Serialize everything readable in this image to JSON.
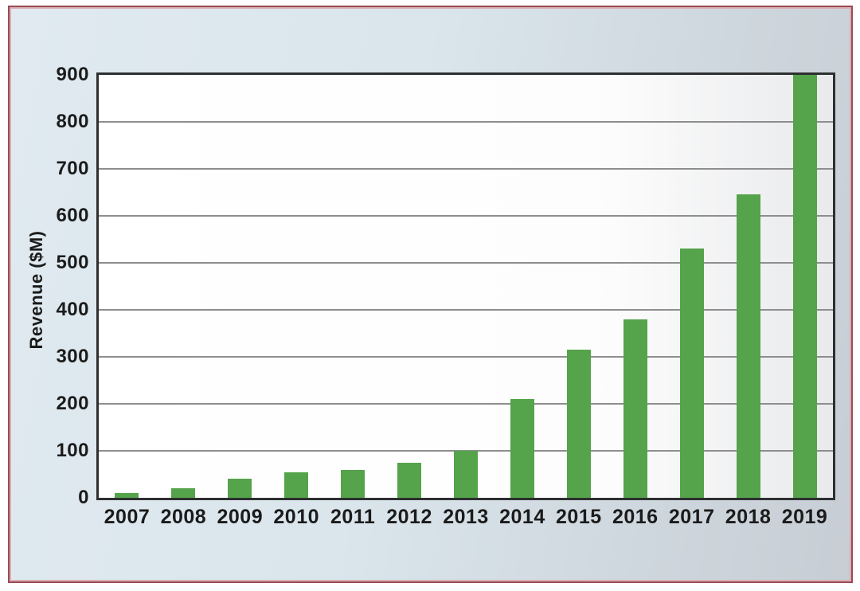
{
  "panel": {
    "border_color": "#9a4b54",
    "border_inner_color": "#d9aeb4",
    "background_left": "#e0eaf0",
    "background_right": "#c7cdd4"
  },
  "chart_data": {
    "type": "bar",
    "title": "",
    "xlabel": "",
    "ylabel": "Revenue ($M)",
    "categories": [
      "2007",
      "2008",
      "2009",
      "2010",
      "2011",
      "2012",
      "2013",
      "2014",
      "2015",
      "2016",
      "2017",
      "2018",
      "2019"
    ],
    "values": [
      10,
      20,
      40,
      55,
      60,
      75,
      100,
      210,
      315,
      380,
      530,
      645,
      900
    ],
    "ylim": [
      0,
      900
    ],
    "yticks": [
      0,
      100,
      200,
      300,
      400,
      500,
      600,
      700,
      800,
      900
    ],
    "grid": "horizontal-gridlines",
    "legend": "none",
    "bar_color": "#55a34b",
    "plot_border_color": "#2d2f30",
    "gridline_color": "#8e8e8e",
    "text_color": "#1b1b1b"
  }
}
